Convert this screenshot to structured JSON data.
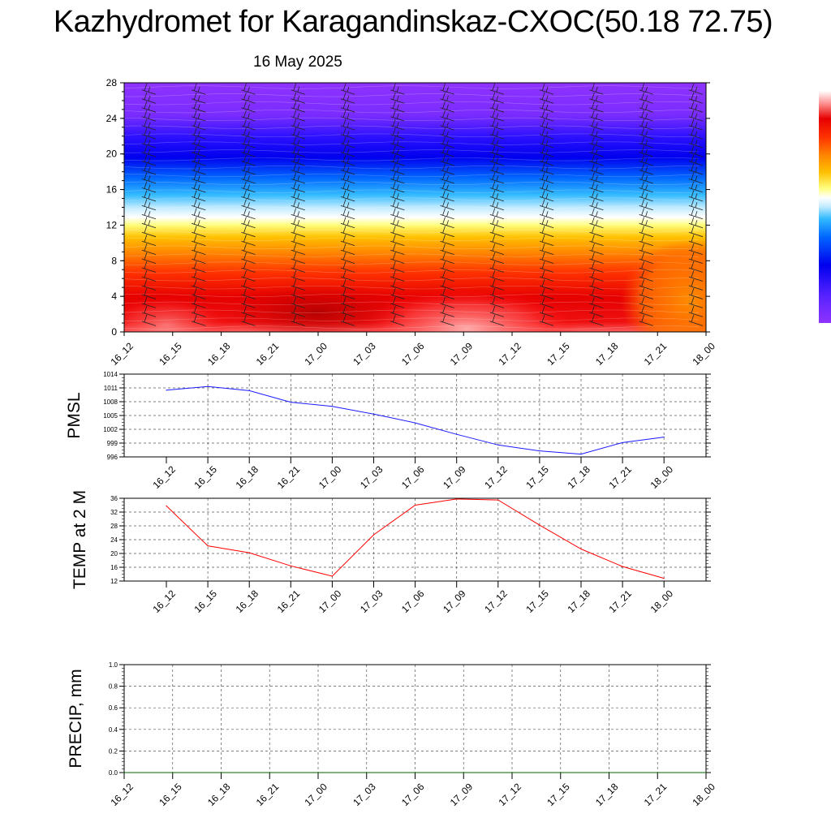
{
  "page": {
    "title": "Kazhydromet for Karagandinskaz-CXOC(50.18 72.75)",
    "date": "16 May 2025"
  },
  "colors": {
    "pmsl_line": "#1a1aff",
    "temp_line": "#ff0000",
    "precip_line": "#006400",
    "grid": "#666666"
  },
  "chart_data": [
    {
      "id": "crosssection",
      "type": "heatmap",
      "ylim": [
        0,
        28
      ],
      "yticks": [
        0,
        4,
        8,
        12,
        16,
        20,
        24,
        28
      ],
      "x": [
        "16_12",
        "16_15",
        "16_18",
        "16_21",
        "17_00",
        "17_03",
        "17_06",
        "17_09",
        "17_12",
        "17_15",
        "17_18",
        "17_21",
        "18_00"
      ],
      "colorbar": [
        "#ffffff",
        "#ffd9d9",
        "#ff9999",
        "#ff3333",
        "#e60000",
        "#ff5500",
        "#ff9900",
        "#ffd000",
        "#ffff99",
        "#ffffff",
        "#cceeff",
        "#55ccff",
        "#0099ff",
        "#0044ff",
        "#0000ee",
        "#3300ff",
        "#6600ff",
        "#9933ff"
      ]
    },
    {
      "id": "pmsl",
      "type": "line",
      "ylabel": "PMSL",
      "ylim": [
        996,
        1014
      ],
      "yticks": [
        996,
        999,
        1002,
        1005,
        1008,
        1011,
        1014
      ],
      "x": [
        "16_12",
        "16_15",
        "16_18",
        "16_21",
        "17_00",
        "17_03",
        "17_06",
        "17_09",
        "17_12",
        "17_15",
        "17_18",
        "17_21",
        "18_00"
      ],
      "values": [
        1010.5,
        1011.3,
        1010.4,
        1007.9,
        1007.0,
        1005.3,
        1003.4,
        1000.9,
        998.6,
        997.3,
        996.6,
        999.1,
        1000.3
      ]
    },
    {
      "id": "temp",
      "type": "line",
      "ylabel": "TEMP at 2 M",
      "ylim": [
        12,
        36
      ],
      "yticks": [
        12,
        16,
        20,
        24,
        28,
        32,
        36
      ],
      "x": [
        "16_12",
        "16_15",
        "16_18",
        "16_21",
        "17_00",
        "17_03",
        "17_06",
        "17_09",
        "17_12",
        "17_15",
        "17_18",
        "17_21",
        "18_00"
      ],
      "values": [
        33.8,
        22.2,
        20.2,
        16.4,
        13.4,
        25.4,
        34.0,
        35.8,
        35.5,
        28.2,
        21.3,
        16.2,
        12.8
      ]
    },
    {
      "id": "precip",
      "type": "line",
      "ylabel": "PRECIP, mm",
      "ylim": [
        0,
        1
      ],
      "yticks": [
        "0.0",
        "0.2",
        "0.4",
        "0.6",
        "0.8",
        "1.0"
      ],
      "x": [
        "16_12",
        "16_15",
        "16_18",
        "16_21",
        "17_00",
        "17_03",
        "17_06",
        "17_09",
        "17_12",
        "17_15",
        "17_18",
        "17_21",
        "18_00"
      ],
      "values": [
        0,
        0,
        0,
        0,
        0,
        0,
        0,
        0,
        0,
        0,
        0,
        0,
        0
      ]
    }
  ]
}
